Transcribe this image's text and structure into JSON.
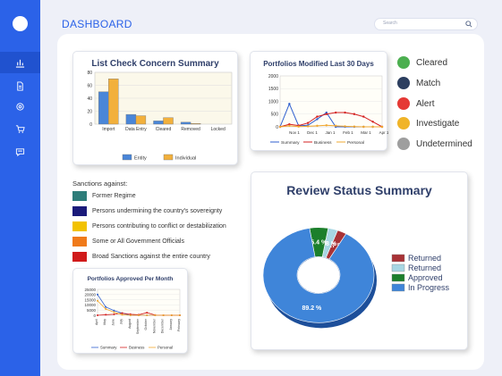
{
  "header": {
    "title": "DASHBOARD"
  },
  "search": {
    "placeholder": "Search"
  },
  "sidebar": {
    "items": [
      {
        "icon": "bar-chart-icon",
        "active": true
      },
      {
        "icon": "document-icon",
        "active": false
      },
      {
        "icon": "gear-icon",
        "active": false
      },
      {
        "icon": "cart-icon",
        "active": false
      },
      {
        "icon": "message-icon",
        "active": false
      }
    ]
  },
  "status_legend": [
    {
      "label": "Cleared",
      "color": "#4caf50"
    },
    {
      "label": "Match",
      "color": "#2c3e5f"
    },
    {
      "label": "Alert",
      "color": "#e53935"
    },
    {
      "label": "Investigate",
      "color": "#f0b429"
    },
    {
      "label": "Undetermined",
      "color": "#9e9e9e"
    }
  ],
  "sanctions": {
    "title": "Sanctions against:",
    "items": [
      {
        "label": "Former Regime",
        "color": "#2e7d7a"
      },
      {
        "label": "Persons undermining the country's sovereignty",
        "color": "#1a1a7a"
      },
      {
        "label": "Persons contributing to conflict or destabilization",
        "color": "#f2c200"
      },
      {
        "label": "Some or All Government Officials",
        "color": "#f07a1a"
      },
      {
        "label": "Broad Sanctions against the entire country",
        "color": "#d01a1a"
      }
    ]
  },
  "charts": {
    "list_check": {
      "title": "List Check Concern Summary",
      "type": "bar",
      "categories": [
        "Import",
        "Data Entry",
        "Cleared",
        "Removed",
        "Locked"
      ],
      "tick_labels": [
        "80",
        "60",
        "40",
        "20",
        "0"
      ],
      "ylim": [
        0,
        80
      ],
      "series": [
        {
          "name": "Entity",
          "color": "#4a86d8",
          "values": [
            50,
            15,
            5,
            3,
            0
          ]
        },
        {
          "name": "Individual",
          "color": "#f2b03c",
          "values": [
            70,
            13,
            10,
            1,
            0
          ]
        }
      ]
    },
    "portfolios_30": {
      "title": "Portfolios Modified Last 30 Days",
      "type": "line",
      "y_ticks": [
        "2000",
        "1500",
        "1000",
        "500",
        "0"
      ],
      "x_ticks": [
        "Nov 1",
        "Dec 1",
        "Jan 1",
        "Feb 1",
        "Mar 1",
        "Apr 1"
      ],
      "ylim": [
        0,
        2000
      ],
      "series": [
        {
          "name": "Summary",
          "color": "#2f5fcf",
          "values": [
            0,
            900,
            40,
            60,
            300,
            560,
            0,
            0,
            0,
            0,
            0,
            0
          ]
        },
        {
          "name": "Business",
          "color": "#d42020",
          "values": [
            0,
            100,
            50,
            150,
            400,
            500,
            560,
            560,
            500,
            400,
            200,
            0
          ]
        },
        {
          "name": "Personal",
          "color": "#f2a830",
          "values": [
            0,
            40,
            10,
            20,
            40,
            60,
            40,
            20,
            10,
            0,
            0,
            0
          ]
        }
      ]
    },
    "portfolios_month": {
      "title": "Portfolios Approved Per Month",
      "type": "line",
      "y_ticks": [
        "25000",
        "20000",
        "15000",
        "10000",
        "5000",
        "0"
      ],
      "ylim": [
        0,
        25000
      ],
      "categories": [
        "April",
        "May",
        "June",
        "July",
        "August",
        "September",
        "October",
        "November",
        "December",
        "January",
        "February"
      ],
      "series": [
        {
          "name": "Summary",
          "color": "#2f5fcf",
          "values": [
            20000,
            8000,
            4500,
            2000,
            0,
            0,
            0,
            0,
            0,
            0,
            0
          ]
        },
        {
          "name": "Business",
          "color": "#d42020",
          "values": [
            0,
            500,
            1000,
            2000,
            1000,
            500,
            2500,
            200,
            0,
            0,
            0
          ]
        },
        {
          "name": "Personal",
          "color": "#f2a830",
          "values": [
            14000,
            6000,
            3000,
            500,
            0,
            0,
            0,
            0,
            0,
            0,
            0
          ]
        }
      ]
    },
    "review_status": {
      "title": "Review Status Summary",
      "type": "pie",
      "slices": [
        {
          "name": "Returned",
          "value": 2.7,
          "color": "#a83236",
          "label": "2.7 %"
        },
        {
          "name": "Returned",
          "value": 2.8,
          "color": "#a7d6e3",
          "label": "2.8 %"
        },
        {
          "name": "Approved",
          "value": 5.4,
          "color": "#1c7f2c",
          "label": "5.4 %"
        },
        {
          "name": "In Progress",
          "value": 89.2,
          "color": "#3f85d9",
          "label": "89.2 %"
        }
      ],
      "legend": [
        "Returned",
        "Returned",
        "Approved",
        "In Progress"
      ]
    }
  }
}
